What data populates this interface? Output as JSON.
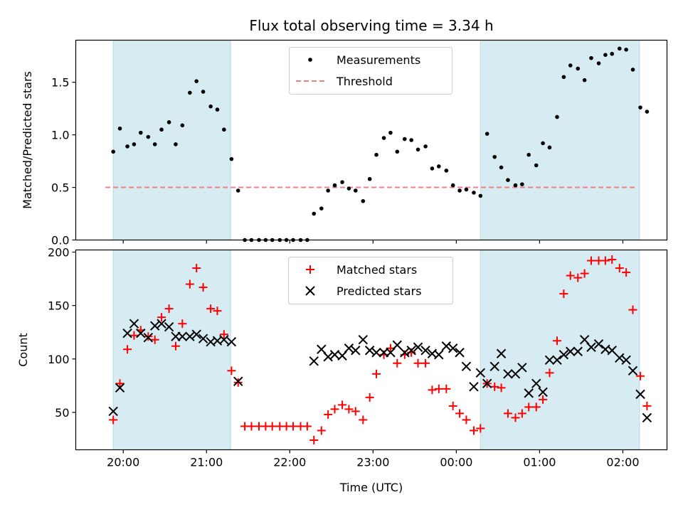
{
  "title": "Flux total observing time = 3.34 h",
  "chart_data": [
    {
      "type": "scatter",
      "ylabel": "Matched/Predicted stars",
      "xlabel": "",
      "x_unit": "hours since 00:00 UTC",
      "xlim": [
        -4.57,
        2.53
      ],
      "ylim": [
        0,
        1.9
      ],
      "yticks": [
        0.0,
        0.5,
        1.0,
        1.5
      ],
      "yticklabels": [
        "0.0",
        "0.5",
        "1.0",
        "1.5"
      ],
      "legend_position": "upper center",
      "shaded_regions": [
        [
          -4.12,
          -2.71
        ],
        [
          0.29,
          2.2
        ]
      ],
      "series": [
        {
          "name": "Measurements",
          "color": "#000000",
          "marker": "dot",
          "points": [
            [
              -4.12,
              0.84
            ],
            [
              -4.04,
              1.06
            ],
            [
              -3.95,
              0.89
            ],
            [
              -3.87,
              0.91
            ],
            [
              -3.79,
              1.02
            ],
            [
              -3.7,
              0.98
            ],
            [
              -3.62,
              0.91
            ],
            [
              -3.54,
              1.05
            ],
            [
              -3.45,
              1.12
            ],
            [
              -3.37,
              0.91
            ],
            [
              -3.29,
              1.09
            ],
            [
              -3.2,
              1.4
            ],
            [
              -3.12,
              1.51
            ],
            [
              -3.04,
              1.41
            ],
            [
              -2.95,
              1.27
            ],
            [
              -2.87,
              1.24
            ],
            [
              -2.79,
              1.05
            ],
            [
              -2.7,
              0.77
            ],
            [
              -2.62,
              0.47
            ],
            [
              -2.54,
              0.0
            ],
            [
              -2.46,
              0.0
            ],
            [
              -2.37,
              0.0
            ],
            [
              -2.29,
              0.0
            ],
            [
              -2.21,
              0.0
            ],
            [
              -2.12,
              0.0
            ],
            [
              -2.04,
              0.0
            ],
            [
              -1.96,
              0.0
            ],
            [
              -1.87,
              0.0
            ],
            [
              -1.79,
              0.0
            ],
            [
              -1.71,
              0.25
            ],
            [
              -1.62,
              0.3
            ],
            [
              -1.54,
              0.47
            ],
            [
              -1.46,
              0.52
            ],
            [
              -1.37,
              0.55
            ],
            [
              -1.29,
              0.49
            ],
            [
              -1.21,
              0.47
            ],
            [
              -1.12,
              0.37
            ],
            [
              -1.04,
              0.58
            ],
            [
              -0.96,
              0.81
            ],
            [
              -0.87,
              0.97
            ],
            [
              -0.79,
              1.02
            ],
            [
              -0.71,
              0.84
            ],
            [
              -0.62,
              0.96
            ],
            [
              -0.54,
              0.95
            ],
            [
              -0.46,
              0.86
            ],
            [
              -0.37,
              0.89
            ],
            [
              -0.29,
              0.68
            ],
            [
              -0.21,
              0.7
            ],
            [
              -0.12,
              0.66
            ],
            [
              -0.04,
              0.52
            ],
            [
              0.04,
              0.47
            ],
            [
              0.12,
              0.48
            ],
            [
              0.21,
              0.45
            ],
            [
              0.29,
              0.42
            ],
            [
              0.37,
              1.01
            ],
            [
              0.46,
              0.79
            ],
            [
              0.54,
              0.69
            ],
            [
              0.62,
              0.57
            ],
            [
              0.71,
              0.52
            ],
            [
              0.79,
              0.53
            ],
            [
              0.87,
              0.81
            ],
            [
              0.96,
              0.71
            ],
            [
              1.04,
              0.92
            ],
            [
              1.12,
              0.88
            ],
            [
              1.21,
              1.17
            ],
            [
              1.29,
              1.55
            ],
            [
              1.37,
              1.66
            ],
            [
              1.46,
              1.63
            ],
            [
              1.54,
              1.52
            ],
            [
              1.62,
              1.73
            ],
            [
              1.71,
              1.68
            ],
            [
              1.79,
              1.76
            ],
            [
              1.87,
              1.77
            ],
            [
              1.96,
              1.82
            ],
            [
              2.04,
              1.81
            ],
            [
              2.12,
              1.62
            ],
            [
              2.21,
              1.26
            ],
            [
              2.29,
              1.22
            ]
          ]
        },
        {
          "name": "Threshold",
          "color": "#f08080",
          "type": "dashed-line",
          "y": 0.5
        }
      ]
    },
    {
      "type": "scatter",
      "ylabel": "Count",
      "xlabel": "Time (UTC)",
      "x_unit": "hours since 00:00 UTC",
      "xlim": [
        -4.57,
        2.53
      ],
      "ylim": [
        15,
        202
      ],
      "yticks": [
        50,
        100,
        150,
        200
      ],
      "yticklabels": [
        "50",
        "100",
        "150",
        "200"
      ],
      "xticks": [
        -4,
        -3,
        -2,
        -1,
        0,
        1,
        2
      ],
      "xticklabels": [
        "20:00",
        "21:00",
        "22:00",
        "23:00",
        "00:00",
        "01:00",
        "02:00"
      ],
      "legend_position": "upper center",
      "shaded_regions": [
        [
          -4.12,
          -2.71
        ],
        [
          0.29,
          2.2
        ]
      ],
      "series": [
        {
          "name": "Matched stars",
          "color": "#ff0000",
          "marker": "plus",
          "points": [
            [
              -4.12,
              43
            ],
            [
              -4.04,
              77
            ],
            [
              -3.95,
              109
            ],
            [
              -3.87,
              122
            ],
            [
              -3.79,
              127
            ],
            [
              -3.7,
              121
            ],
            [
              -3.62,
              118
            ],
            [
              -3.54,
              139
            ],
            [
              -3.45,
              147
            ],
            [
              -3.37,
              112
            ],
            [
              -3.29,
              133
            ],
            [
              -3.2,
              170
            ],
            [
              -3.12,
              185
            ],
            [
              -3.04,
              167
            ],
            [
              -2.95,
              147
            ],
            [
              -2.87,
              145
            ],
            [
              -2.79,
              123
            ],
            [
              -2.7,
              89
            ],
            [
              -2.62,
              78
            ],
            [
              -2.54,
              37
            ],
            [
              -2.46,
              37
            ],
            [
              -2.37,
              37
            ],
            [
              -2.29,
              37
            ],
            [
              -2.21,
              37
            ],
            [
              -2.12,
              37
            ],
            [
              -2.04,
              37
            ],
            [
              -1.96,
              37
            ],
            [
              -1.87,
              37
            ],
            [
              -1.79,
              37
            ],
            [
              -1.71,
              24
            ],
            [
              -1.62,
              33
            ],
            [
              -1.54,
              48
            ],
            [
              -1.46,
              53
            ],
            [
              -1.37,
              57
            ],
            [
              -1.29,
              53
            ],
            [
              -1.21,
              51
            ],
            [
              -1.12,
              43
            ],
            [
              -1.04,
              64
            ],
            [
              -0.96,
              86
            ],
            [
              -0.87,
              104
            ],
            [
              -0.79,
              110
            ],
            [
              -0.71,
              96
            ],
            [
              -0.62,
              104
            ],
            [
              -0.54,
              106
            ],
            [
              -0.46,
              96
            ],
            [
              -0.37,
              96
            ],
            [
              -0.29,
              71
            ],
            [
              -0.21,
              72
            ],
            [
              -0.12,
              72
            ],
            [
              -0.04,
              56
            ],
            [
              0.04,
              49
            ],
            [
              0.12,
              43
            ],
            [
              0.21,
              33
            ],
            [
              0.29,
              35
            ],
            [
              0.37,
              77
            ],
            [
              0.46,
              74
            ],
            [
              0.54,
              73
            ],
            [
              0.62,
              49
            ],
            [
              0.71,
              45
            ],
            [
              0.79,
              49
            ],
            [
              0.87,
              55
            ],
            [
              0.96,
              55
            ],
            [
              1.04,
              62
            ],
            [
              1.12,
              87
            ],
            [
              1.21,
              117
            ],
            [
              1.29,
              161
            ],
            [
              1.37,
              178
            ],
            [
              1.46,
              176
            ],
            [
              1.54,
              180
            ],
            [
              1.62,
              192
            ],
            [
              1.71,
              192
            ],
            [
              1.79,
              192
            ],
            [
              1.87,
              193
            ],
            [
              1.96,
              185
            ],
            [
              2.04,
              181
            ],
            [
              2.12,
              146
            ],
            [
              2.21,
              84
            ],
            [
              2.29,
              56
            ]
          ]
        },
        {
          "name": "Predicted stars",
          "color": "#000000",
          "marker": "x",
          "points": [
            [
              -4.12,
              51
            ],
            [
              -4.04,
              73
            ],
            [
              -3.95,
              124
            ],
            [
              -3.87,
              133
            ],
            [
              -3.79,
              124
            ],
            [
              -3.7,
              120
            ],
            [
              -3.62,
              131
            ],
            [
              -3.54,
              133
            ],
            [
              -3.45,
              130
            ],
            [
              -3.37,
              121
            ],
            [
              -3.29,
              121
            ],
            [
              -3.2,
              121
            ],
            [
              -3.12,
              123
            ],
            [
              -3.04,
              119
            ],
            [
              -2.95,
              116
            ],
            [
              -2.87,
              117
            ],
            [
              -2.79,
              118
            ],
            [
              -2.7,
              116
            ],
            [
              -2.62,
              79
            ],
            [
              -1.71,
              98
            ],
            [
              -1.62,
              109
            ],
            [
              -1.54,
              102
            ],
            [
              -1.46,
              104
            ],
            [
              -1.37,
              103
            ],
            [
              -1.29,
              110
            ],
            [
              -1.21,
              108
            ],
            [
              -1.12,
              118
            ],
            [
              -1.04,
              108
            ],
            [
              -0.96,
              106
            ],
            [
              -0.87,
              106
            ],
            [
              -0.79,
              106
            ],
            [
              -0.71,
              113
            ],
            [
              -0.62,
              106
            ],
            [
              -0.54,
              108
            ],
            [
              -0.46,
              111
            ],
            [
              -0.37,
              108
            ],
            [
              -0.29,
              105
            ],
            [
              -0.21,
              104
            ],
            [
              -0.12,
              112
            ],
            [
              -0.04,
              110
            ],
            [
              0.04,
              106
            ],
            [
              0.12,
              93
            ],
            [
              0.21,
              74
            ],
            [
              0.29,
              87
            ],
            [
              0.37,
              77
            ],
            [
              0.46,
              93
            ],
            [
              0.54,
              105
            ],
            [
              0.62,
              86
            ],
            [
              0.71,
              86
            ],
            [
              0.79,
              92
            ],
            [
              0.87,
              68
            ],
            [
              0.96,
              77
            ],
            [
              1.04,
              69
            ],
            [
              1.12,
              99
            ],
            [
              1.21,
              99
            ],
            [
              1.29,
              104
            ],
            [
              1.37,
              107
            ],
            [
              1.46,
              107
            ],
            [
              1.54,
              118
            ],
            [
              1.62,
              111
            ],
            [
              1.71,
              114
            ],
            [
              1.79,
              109
            ],
            [
              1.87,
              108
            ],
            [
              1.96,
              101
            ],
            [
              2.04,
              99
            ],
            [
              2.12,
              89
            ],
            [
              2.21,
              67
            ],
            [
              2.29,
              45
            ]
          ]
        }
      ]
    }
  ]
}
